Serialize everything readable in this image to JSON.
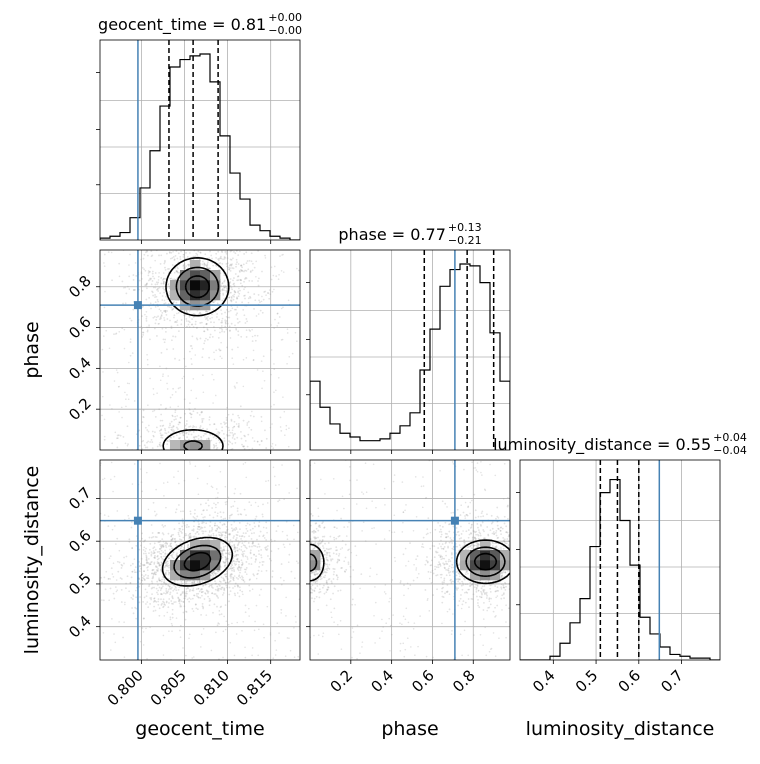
{
  "chart_data": {
    "type": "corner",
    "parameters": [
      "geocent_time",
      "phase",
      "luminosity_distance"
    ],
    "truth_color": "#4682b4",
    "truths": {
      "geocent_time": 0.7996,
      "phase": 0.71,
      "luminosity_distance": 0.648
    },
    "titles": [
      {
        "param": "geocent_time",
        "label": "geocent_time = 0.81",
        "plus": "+0.00",
        "minus": "−0.00"
      },
      {
        "param": "phase",
        "label": "phase = 0.77",
        "plus": "+0.13",
        "minus": "−0.21"
      },
      {
        "param": "luminosity_distance",
        "label": "luminosity_distance = 0.55",
        "plus": "+0.04",
        "minus": "−0.04"
      }
    ],
    "xlabels": [
      "geocent_time",
      "phase",
      "luminosity_distance"
    ],
    "ylabels": [
      "phase",
      "luminosity_distance"
    ],
    "ticks": {
      "geocent_time": {
        "range": [
          0.7952,
          0.8184
        ],
        "values": [
          0.8,
          0.805,
          0.81,
          0.815
        ],
        "labels": [
          "0.800",
          "0.805",
          "0.810",
          "0.815"
        ]
      },
      "phase": {
        "range": [
          0.0,
          0.98
        ],
        "values": [
          0.2,
          0.4,
          0.6,
          0.8
        ],
        "labels": [
          "0.2",
          "0.4",
          "0.6",
          "0.8"
        ]
      },
      "luminosity_distance": {
        "range": [
          0.322,
          0.79
        ],
        "values": [
          0.4,
          0.5,
          0.6,
          0.7
        ],
        "labels": [
          "0.4",
          "0.5",
          "0.6",
          "0.7"
        ]
      }
    },
    "histograms": {
      "geocent_time": {
        "bin_edges": [
          0.7952,
          0.79636,
          0.79752,
          0.79868,
          0.79984,
          0.801,
          0.80216,
          0.80332,
          0.80448,
          0.80564,
          0.8068,
          0.80796,
          0.80912,
          0.81028,
          0.81144,
          0.8126,
          0.81376,
          0.81492,
          0.81608,
          0.81724,
          0.8184
        ],
        "counts": [
          0.01,
          0.02,
          0.04,
          0.12,
          0.28,
          0.48,
          0.72,
          0.93,
          0.97,
          0.99,
          1.0,
          0.85,
          0.56,
          0.36,
          0.22,
          0.08,
          0.05,
          0.02,
          0.01,
          0.0
        ],
        "quantiles": [
          0.8032,
          0.806,
          0.8089
        ]
      },
      "phase": {
        "bin_edges": [
          0.0,
          0.049,
          0.098,
          0.147,
          0.196,
          0.245,
          0.294,
          0.343,
          0.392,
          0.441,
          0.49,
          0.539,
          0.588,
          0.637,
          0.686,
          0.735,
          0.784,
          0.833,
          0.882,
          0.931,
          0.98
        ],
        "counts": [
          0.37,
          0.23,
          0.14,
          0.09,
          0.07,
          0.05,
          0.05,
          0.06,
          0.09,
          0.13,
          0.2,
          0.43,
          0.65,
          0.88,
          0.97,
          1.0,
          0.99,
          0.9,
          0.63,
          0.37
        ],
        "quantiles": [
          0.56,
          0.77,
          0.9
        ]
      },
      "luminosity_distance": {
        "bin_edges": [
          0.322,
          0.3454,
          0.3688,
          0.3922,
          0.4156,
          0.439,
          0.4624,
          0.4858,
          0.5092,
          0.5326,
          0.556,
          0.5794,
          0.6028,
          0.6262,
          0.6496,
          0.673,
          0.6964,
          0.7198,
          0.7432,
          0.7666,
          0.79
        ],
        "counts": [
          0.0,
          0.0,
          0.0,
          0.02,
          0.09,
          0.2,
          0.33,
          0.61,
          0.9,
          0.97,
          0.75,
          0.51,
          0.23,
          0.14,
          0.07,
          0.03,
          0.02,
          0.01,
          0.01,
          0.0
        ],
        "quantiles": [
          0.51,
          0.55,
          0.6
        ]
      }
    },
    "density_2d": [
      {
        "x": "geocent_time",
        "y": "phase",
        "modes": [
          {
            "cx": 0.8065,
            "cy": 0.8,
            "sx": 0.0018,
            "sy": 0.07,
            "weight": 1.0
          },
          {
            "cx": 0.806,
            "cy": 0.02,
            "sx": 0.0022,
            "sy": 0.05,
            "weight": 0.45
          }
        ]
      },
      {
        "x": "geocent_time",
        "y": "luminosity_distance",
        "modes": [
          {
            "cx": 0.8065,
            "cy": 0.552,
            "sx": 0.002,
            "sy": 0.028,
            "weight": 1.0,
            "rho": 0.3
          }
        ]
      },
      {
        "x": "phase",
        "y": "luminosity_distance",
        "modes": [
          {
            "cx": 0.86,
            "cy": 0.552,
            "sx": 0.07,
            "sy": 0.025,
            "weight": 1.0
          },
          {
            "cx": 0.0,
            "cy": 0.55,
            "sx": 0.04,
            "sy": 0.025,
            "weight": 0.55
          }
        ]
      }
    ]
  }
}
